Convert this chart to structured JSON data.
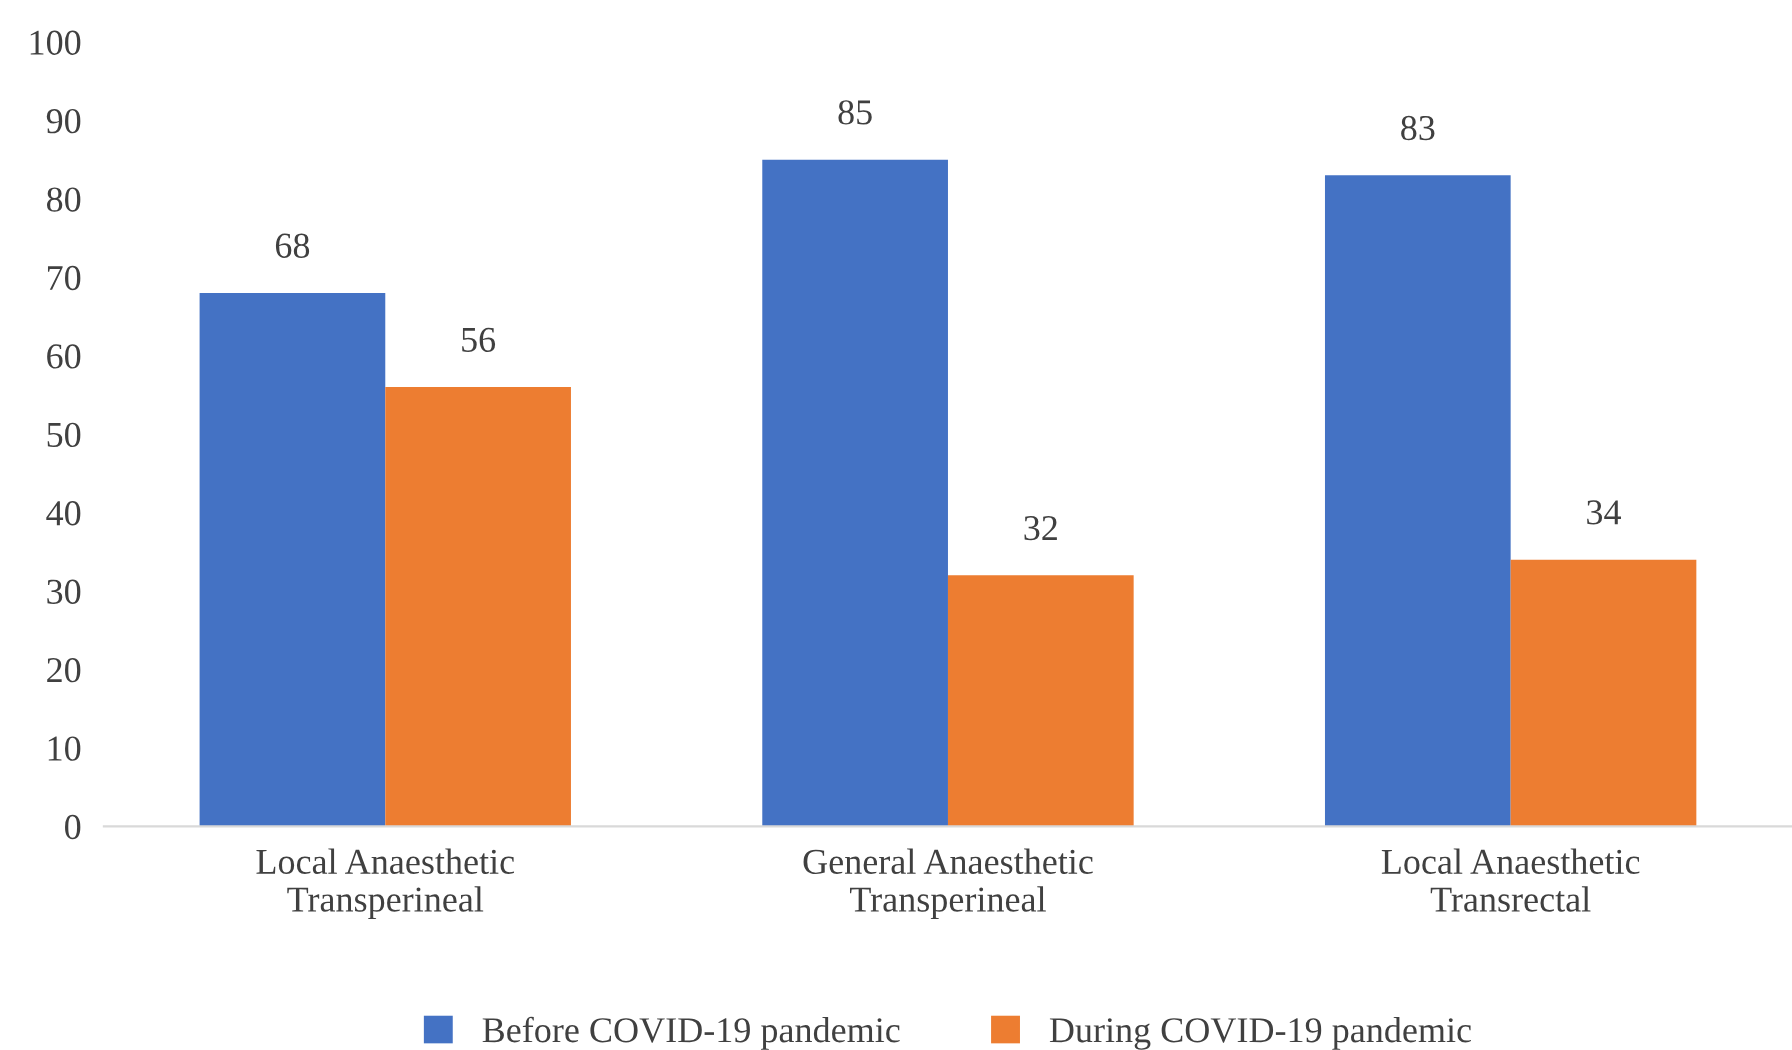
{
  "chart_data": {
    "type": "bar",
    "categories": [
      "Local Anaesthetic\nTransperineal",
      "General Anaesthetic\nTransperineal",
      "Local Anaesthetic\nTransrectal"
    ],
    "series": [
      {
        "name": "Before COVID-19 pandemic",
        "color": "#4472c4",
        "values": [
          68,
          85,
          83
        ]
      },
      {
        "name": "During COVID-19 pandemic",
        "color": "#ed7d31",
        "values": [
          56,
          32,
          34
        ]
      }
    ],
    "ylim": [
      0,
      100
    ],
    "yticks": [
      0,
      10,
      20,
      30,
      40,
      50,
      60,
      70,
      80,
      90,
      100
    ],
    "grid": false,
    "legend": "bottom",
    "data_labels": true
  }
}
